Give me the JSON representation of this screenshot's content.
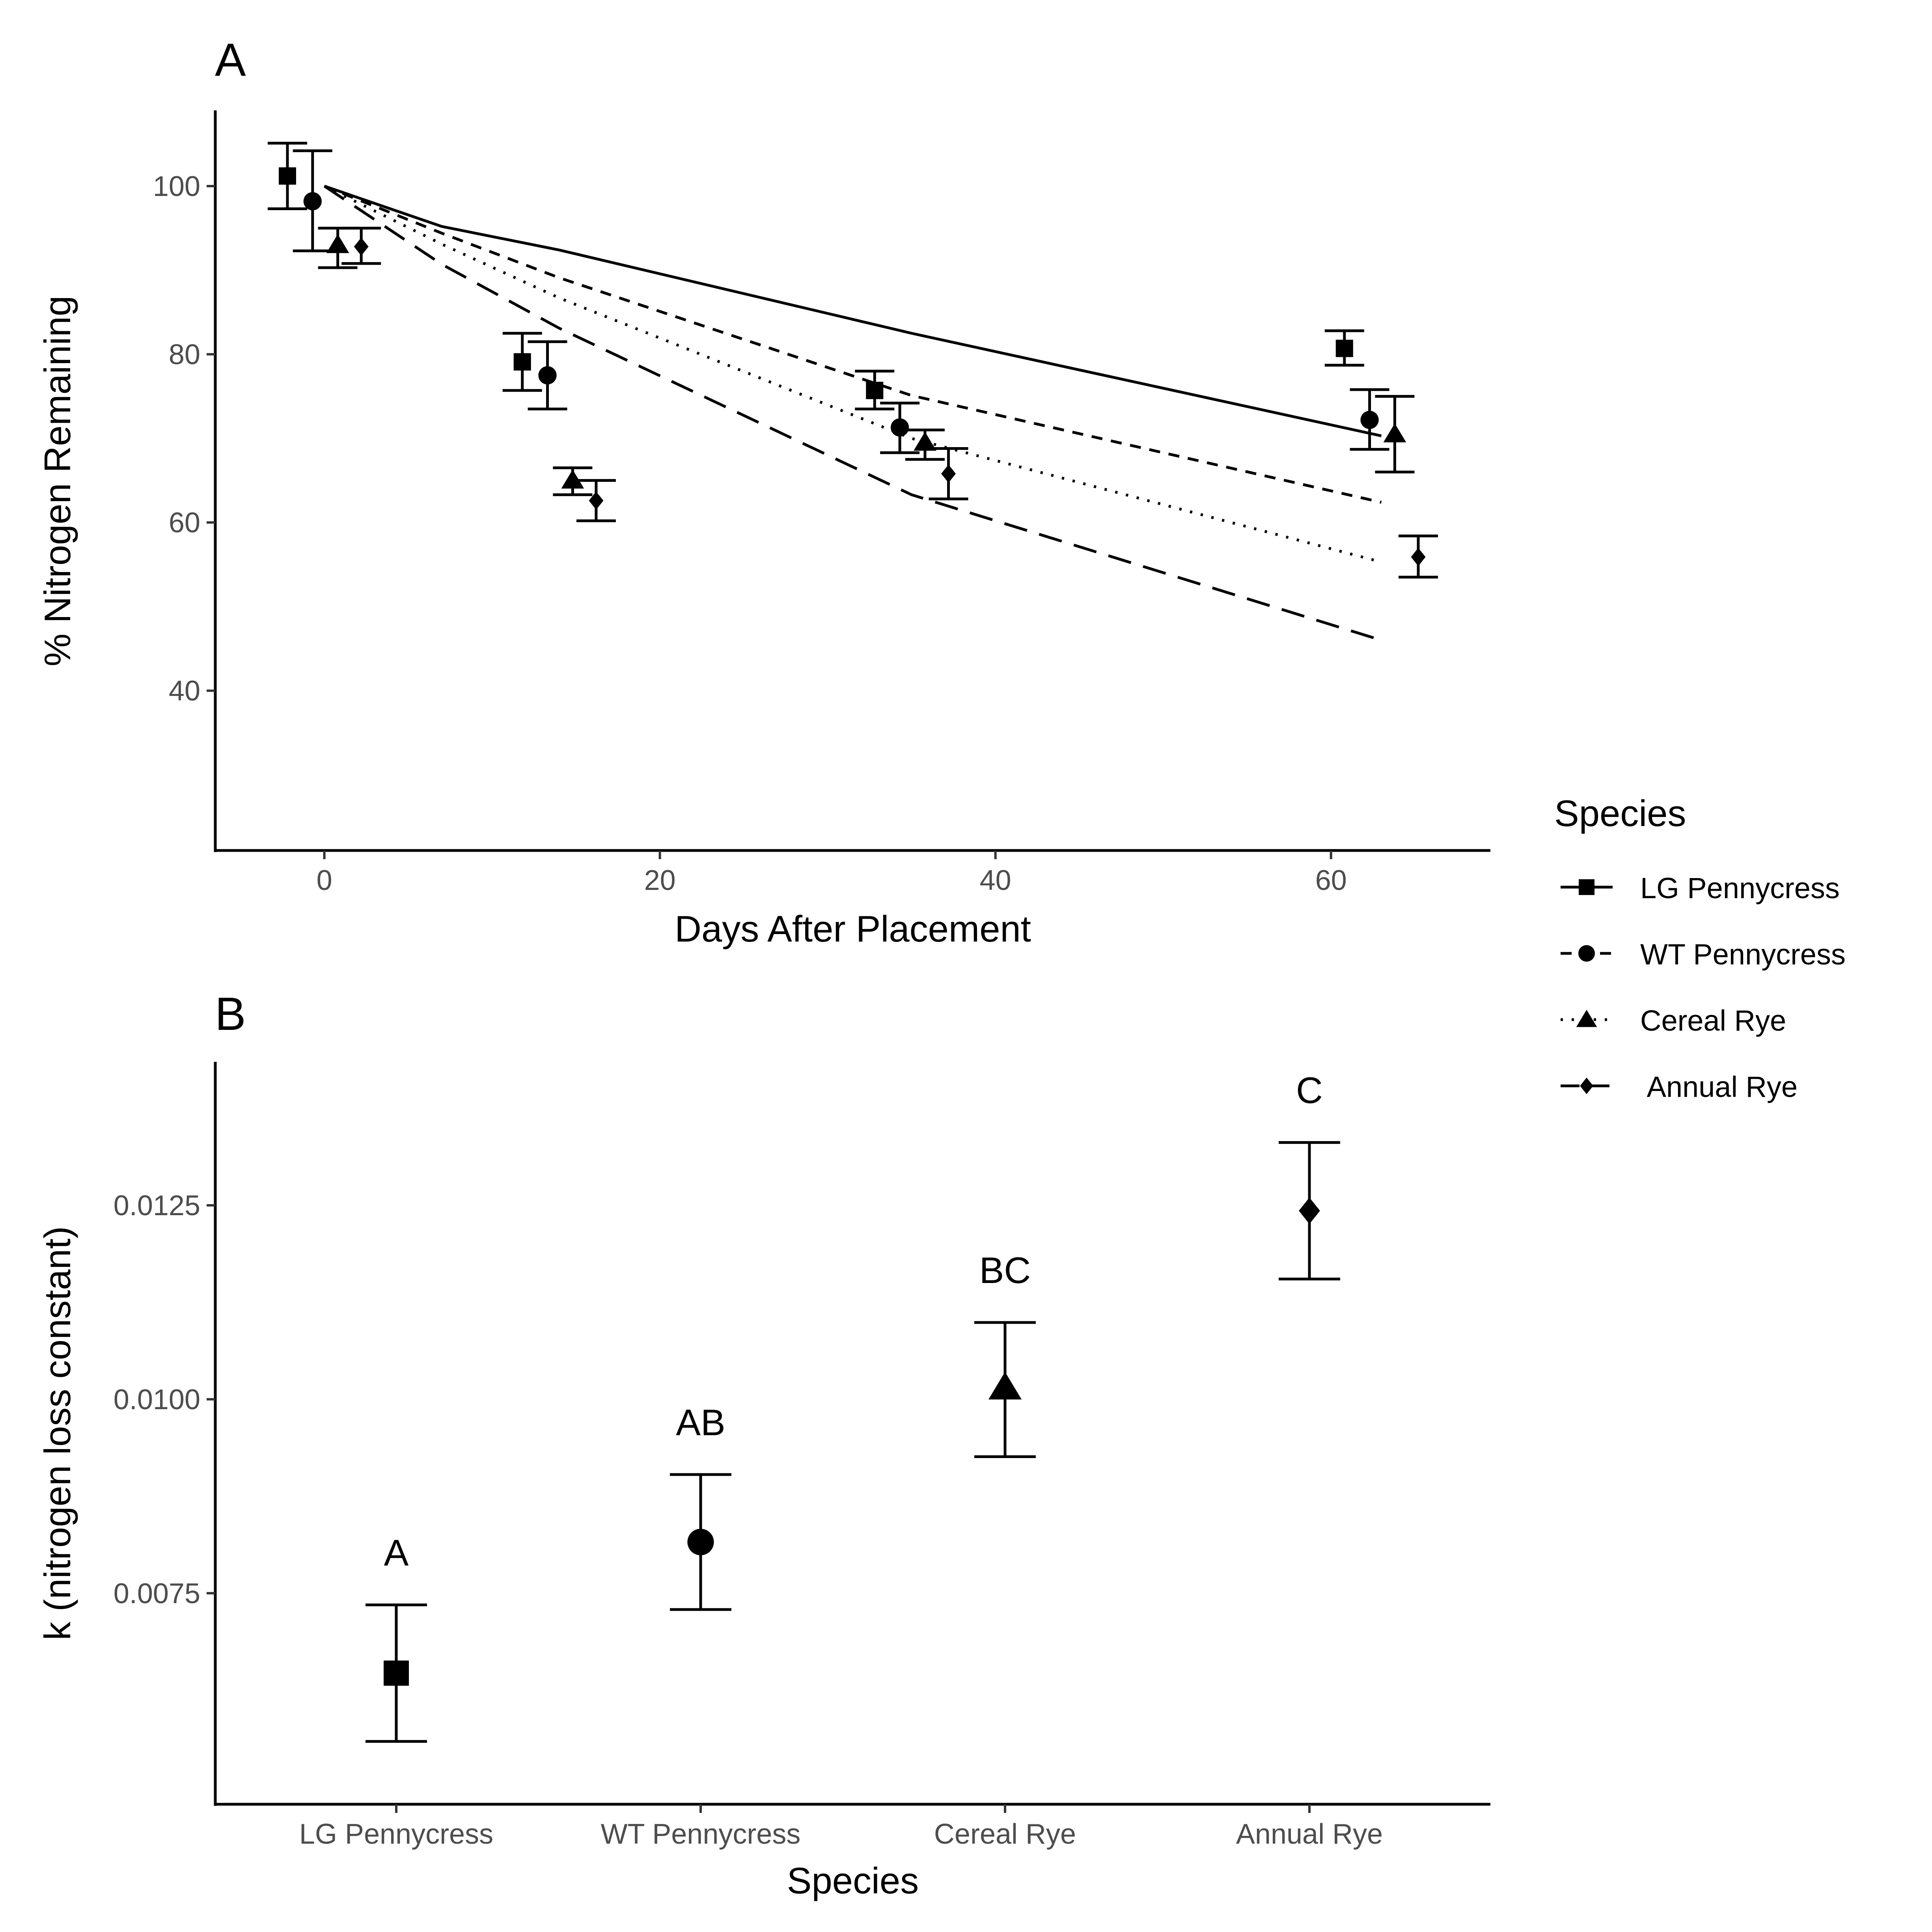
{
  "chart_data": [
    {
      "panel": "A",
      "type": "scatter",
      "xlabel": "Days After Placement",
      "ylabel": "% Nitrogen Remaining",
      "xlim": [
        -6.5,
        69.5
      ],
      "ylim": [
        21,
        109
      ],
      "x_ticks": [
        0,
        20,
        40,
        60
      ],
      "y_ticks": [
        40,
        60,
        80,
        100
      ],
      "grid": false,
      "legend": {
        "title": "Species",
        "placement": "right",
        "entries": [
          "LG Pennycress",
          "WT Pennycress",
          "Cereal Rye",
          " Annual Rye"
        ]
      },
      "series": [
        {
          "name": "LG Pennycress",
          "shape": "square",
          "linetype": "solid",
          "points": [
            {
              "x": 0,
              "y": 101.2,
              "lo": 97.3,
              "hi": 105.1
            },
            {
              "x": 14,
              "y": 79.1,
              "lo": 75.7,
              "hi": 82.5
            },
            {
              "x": 35,
              "y": 75.7,
              "lo": 73.5,
              "hi": 78.0
            },
            {
              "x": 63,
              "y": 80.7,
              "lo": 78.7,
              "hi": 82.8
            }
          ],
          "fit": [
            [
              0,
              100
            ],
            [
              7,
              95.2
            ],
            [
              14,
              92.4
            ],
            [
              35,
              82.5
            ],
            [
              63,
              70.3
            ]
          ]
        },
        {
          "name": "WT Pennycress",
          "shape": "circle",
          "linetype": "dashed",
          "points": [
            {
              "x": 0,
              "y": 98.2,
              "lo": 92.3,
              "hi": 104.2
            },
            {
              "x": 14,
              "y": 77.5,
              "lo": 73.5,
              "hi": 81.5
            },
            {
              "x": 35,
              "y": 71.3,
              "lo": 68.3,
              "hi": 74.2
            },
            {
              "x": 63,
              "y": 72.2,
              "lo": 68.7,
              "hi": 75.8
            }
          ],
          "fit": [
            [
              0,
              100
            ],
            [
              7,
              94.4
            ],
            [
              14,
              89.1
            ],
            [
              35,
              75.1
            ],
            [
              63,
              62.4
            ]
          ]
        },
        {
          "name": "Cereal Rye",
          "shape": "triangle",
          "linetype": "dotted",
          "points": [
            {
              "x": 0,
              "y": 93.0,
              "lo": 90.3,
              "hi": 95.0
            },
            {
              "x": 14,
              "y": 65.0,
              "lo": 63.3,
              "hi": 66.5
            },
            {
              "x": 35,
              "y": 69.5,
              "lo": 67.5,
              "hi": 71.0
            },
            {
              "x": 63,
              "y": 70.5,
              "lo": 66.0,
              "hi": 75.0
            }
          ],
          "fit": [
            [
              0,
              100
            ],
            [
              7,
              93.1
            ],
            [
              14,
              86.7
            ],
            [
              35,
              70.0
            ],
            [
              63,
              55.3
            ]
          ]
        },
        {
          "name": " Annual Rye",
          "shape": "diamond",
          "linetype": "longdash",
          "points": [
            {
              "x": 0,
              "y": 92.8,
              "lo": 90.8,
              "hi": 95.0
            },
            {
              "x": 14,
              "y": 62.6,
              "lo": 60.2,
              "hi": 65.0
            },
            {
              "x": 35,
              "y": 65.8,
              "lo": 62.8,
              "hi": 68.8
            },
            {
              "x": 63,
              "y": 55.9,
              "lo": 53.5,
              "hi": 58.4
            }
          ],
          "fit": [
            [
              0,
              100
            ],
            [
              7,
              90.7
            ],
            [
              14,
              83.1
            ],
            [
              35,
              63.3
            ],
            [
              63,
              46.0
            ]
          ]
        }
      ]
    },
    {
      "panel": "B",
      "type": "scatter",
      "xlabel": "Species",
      "ylabel": "k (nitrogen loss constant)",
      "ylim": [
        0.00478,
        0.01435
      ],
      "y_ticks": [
        0.0075,
        0.01,
        0.0125
      ],
      "y_tick_labels": [
        "0.0075",
        "0.0100",
        "0.0125"
      ],
      "grid": false,
      "categories": [
        "LG Pennycress",
        "WT Pennycress",
        "Cereal Rye",
        "Annual Rye"
      ],
      "shapes": [
        "square",
        "circle",
        "triangle",
        "diamond"
      ],
      "values": [
        0.00647,
        0.00816,
        0.01015,
        0.01243
      ],
      "error_low": [
        0.00559,
        0.00729,
        0.00926,
        0.01155
      ],
      "error_high": [
        0.00735,
        0.00903,
        0.01099,
        0.01331
      ],
      "letters": [
        "A",
        "AB",
        "BC",
        "C"
      ]
    }
  ]
}
